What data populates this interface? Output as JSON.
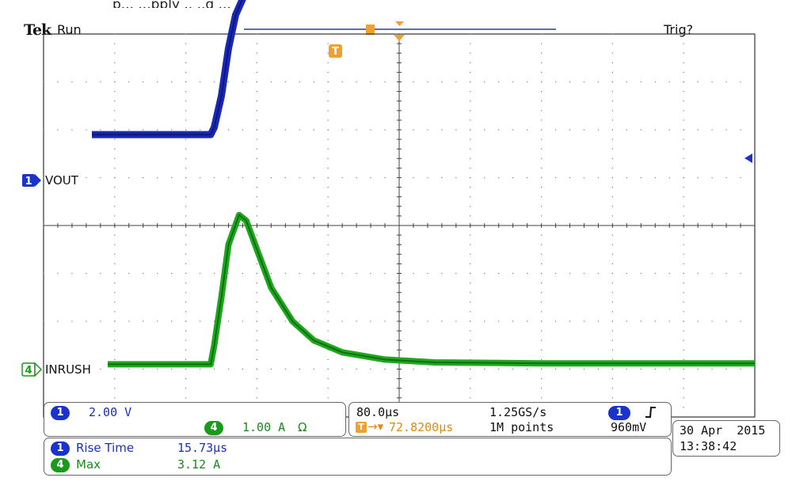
{
  "top_fragment": "p...       ...pply       ..  ..g ...",
  "header": {
    "brand": "Tek",
    "state": "Run",
    "trigger_status": "Trig?"
  },
  "channels": {
    "ch1": {
      "number": "1",
      "label": "VOUT",
      "scale": "2.00 V",
      "color": "#1a2fb8"
    },
    "ch4": {
      "number": "4",
      "label": "INRUSH",
      "scale": "1.00 A",
      "coupling": "Ω",
      "color": "#1a9a1a"
    }
  },
  "timebase": {
    "horizontal_scale": "80.0µs",
    "trigger_delay": "72.8200µs",
    "sample_rate": "1.25GS/s",
    "record_length": "1M points"
  },
  "trigger": {
    "source": "1",
    "slope_icon": "rising-edge-icon",
    "level": "960mV",
    "marker": "T"
  },
  "measurements": [
    {
      "channel": "1",
      "name": "Rise Time",
      "value": "15.73µs"
    },
    {
      "channel": "4",
      "name": "Max",
      "value": "3.12 A"
    }
  ],
  "datetime": {
    "date": "30 Apr  2015",
    "time": "13:38:42"
  },
  "chart_data": {
    "type": "line",
    "xlabel": "",
    "ylabel": "",
    "grid": true,
    "series": [
      {
        "name": "VOUT",
        "x": [
          0,
          0.9,
          2.35,
          2.4,
          2.5,
          2.6,
          2.7,
          2.85,
          3.0,
          3.3,
          3.6,
          4.0,
          6.0,
          8.0,
          10.0
        ],
        "y": [
          0,
          0,
          0,
          0.3,
          1.6,
          3.6,
          5.0,
          6.0,
          6.3,
          6.42,
          6.45,
          6.45,
          6.4,
          6.38,
          6.38
        ]
      },
      {
        "name": "INRUSH",
        "x": [
          0,
          1.1,
          2.35,
          2.4,
          2.5,
          2.6,
          2.75,
          2.85,
          3.0,
          3.2,
          3.5,
          3.8,
          4.2,
          4.8,
          5.5,
          7.0,
          10.0
        ],
        "y": [
          0,
          0,
          0,
          0.4,
          1.4,
          2.5,
          3.12,
          3.0,
          2.4,
          1.6,
          0.9,
          0.5,
          0.25,
          0.1,
          0.04,
          0.02,
          0.02
        ]
      }
    ]
  }
}
